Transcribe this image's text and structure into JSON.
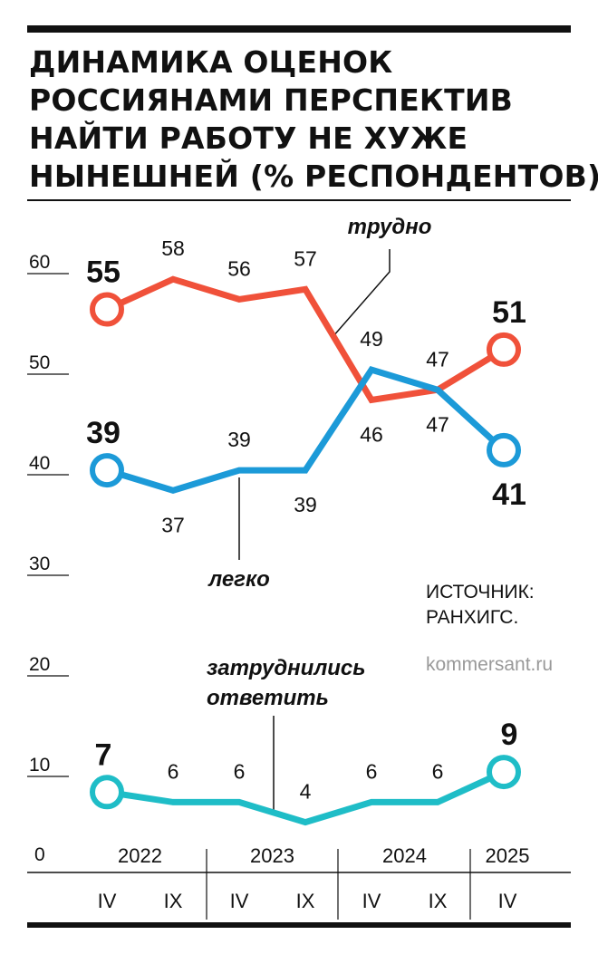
{
  "header": {
    "title_lines": [
      "ДИНАМИКА ОЦЕНОК",
      "РОССИЯНАМИ ПЕРСПЕКТИВ",
      "НАЙТИ РАБОТУ НЕ ХУЖЕ",
      "НЫНЕШНЕЙ (% РЕСПОНДЕНТОВ)"
    ]
  },
  "footer": {
    "source_lines": [
      "ИСТОЧНИК:",
      "РАНХИГС."
    ],
    "site": "kommersant.ru"
  },
  "chart_data": {
    "type": "line",
    "title": "ДИНАМИКА ОЦЕНОК РОССИЯНАМИ ПЕРСПЕКТИВ НАЙТИ РАБОТУ НЕ ХУЖЕ НЫНЕШНЕЙ (% РЕСПОНДЕНТОВ)",
    "categories": [
      "IV",
      "IX",
      "IV",
      "IX",
      "IV",
      "IX",
      "IV"
    ],
    "years": [
      {
        "label": "2022",
        "start": 0,
        "end": 1
      },
      {
        "label": "2023",
        "start": 2,
        "end": 3
      },
      {
        "label": "2024",
        "start": 4,
        "end": 5
      },
      {
        "label": "2025",
        "start": 6,
        "end": 6
      }
    ],
    "y_ticks": [
      0,
      10,
      20,
      30,
      40,
      50,
      60
    ],
    "ylim": [
      0,
      60
    ],
    "grid": false,
    "series": [
      {
        "name": "трудно",
        "values": [
          55,
          58,
          56,
          57,
          46,
          47,
          51
        ],
        "color": "#f0513a",
        "label_pos": [
          "up",
          "up",
          "up",
          "up",
          "down",
          "down",
          "up"
        ]
      },
      {
        "name": "легко",
        "values": [
          39,
          37,
          39,
          39,
          49,
          47,
          41
        ],
        "color": "#1c9ad8",
        "label_pos": [
          "up",
          "down",
          "up",
          "down",
          "up",
          "up",
          "down"
        ]
      },
      {
        "name": "затруднились ответить",
        "values": [
          7,
          6,
          6,
          4,
          6,
          6,
          9
        ],
        "color": "#1fbdc7",
        "label_pos": [
          "up",
          "up",
          "up",
          "up",
          "up",
          "up",
          "up"
        ]
      }
    ]
  }
}
